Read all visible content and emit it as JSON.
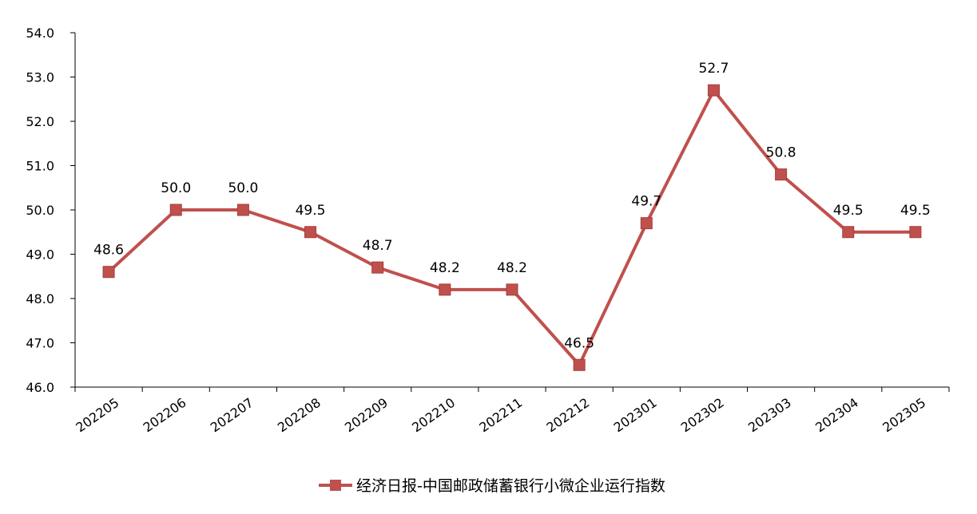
{
  "chart_data": {
    "type": "line",
    "title": "",
    "xlabel": "",
    "ylabel": "",
    "categories": [
      "202205",
      "202206",
      "202207",
      "202208",
      "202209",
      "202210",
      "202211",
      "202212",
      "202301",
      "202302",
      "202303",
      "202304",
      "202305"
    ],
    "series": [
      {
        "name": "经济日报-中国邮政储蓄银行小微企业运行指数",
        "values": [
          48.6,
          50.0,
          50.0,
          49.5,
          48.7,
          48.2,
          48.2,
          46.5,
          49.7,
          52.7,
          50.8,
          49.5,
          49.5
        ],
        "color": "#c0504d",
        "marker": "square"
      }
    ],
    "ylim": [
      46.0,
      54.0
    ],
    "yticks": [
      "46.0",
      "47.0",
      "48.0",
      "49.0",
      "50.0",
      "51.0",
      "52.0",
      "53.0",
      "54.0"
    ],
    "data_labels": [
      "48.6",
      "50.0",
      "50.0",
      "49.5",
      "48.7",
      "48.2",
      "48.2",
      "46.5",
      "49.7",
      "52.7",
      "50.8",
      "49.5",
      "49.5"
    ],
    "grid": false,
    "legend_position": "bottom-center",
    "axis_color": "#000000"
  }
}
